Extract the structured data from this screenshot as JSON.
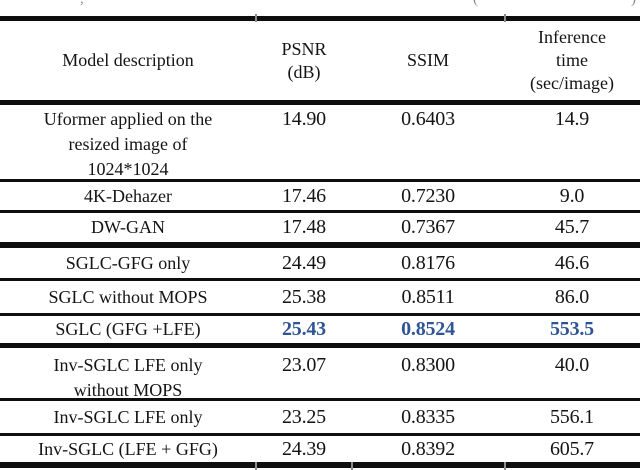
{
  "caption_remnant": {
    "fragment_left": ",",
    "fragment_mid": "(",
    "fragment_right": ")"
  },
  "table": {
    "headers": {
      "model": "Model description",
      "psnr": "PSNR\n(dB)",
      "ssim": "SSIM",
      "time": "Inference\ntime\n(sec/image)"
    },
    "rows": [
      {
        "model": "Uformer applied on the\nresized image of\n1024*1024",
        "psnr": "14.90",
        "ssim": "0.6403",
        "time": "14.9"
      },
      {
        "model": "4K-Dehazer",
        "psnr": "17.46",
        "ssim": "0.7230",
        "time": "9.0"
      },
      {
        "model": "DW-GAN",
        "psnr": "17.48",
        "ssim": "0.7367",
        "time": "45.7"
      },
      {
        "model": "SGLC-GFG only",
        "psnr": "24.49",
        "ssim": "0.8176",
        "time": "46.6"
      },
      {
        "model": "SGLC without MOPS",
        "psnr": "25.38",
        "ssim": "0.8511",
        "time": "86.0"
      },
      {
        "model": "SGLC (GFG +LFE)",
        "psnr": "25.43",
        "ssim": "0.8524",
        "time": "553.5",
        "highlighted": true
      },
      {
        "model": "Inv-SGLC LFE only\nwithout MOPS",
        "psnr": "23.07",
        "ssim": "0.8300",
        "time": "40.0"
      },
      {
        "model": "Inv-SGLC LFE only",
        "psnr": "23.25",
        "ssim": "0.8335",
        "time": "556.1"
      },
      {
        "model": "Inv-SGLC (LFE + GFG)",
        "psnr": "24.39",
        "ssim": "0.8392",
        "time": "605.7"
      }
    ],
    "highlight_color": "#2f5496",
    "text_color": "#141414"
  }
}
